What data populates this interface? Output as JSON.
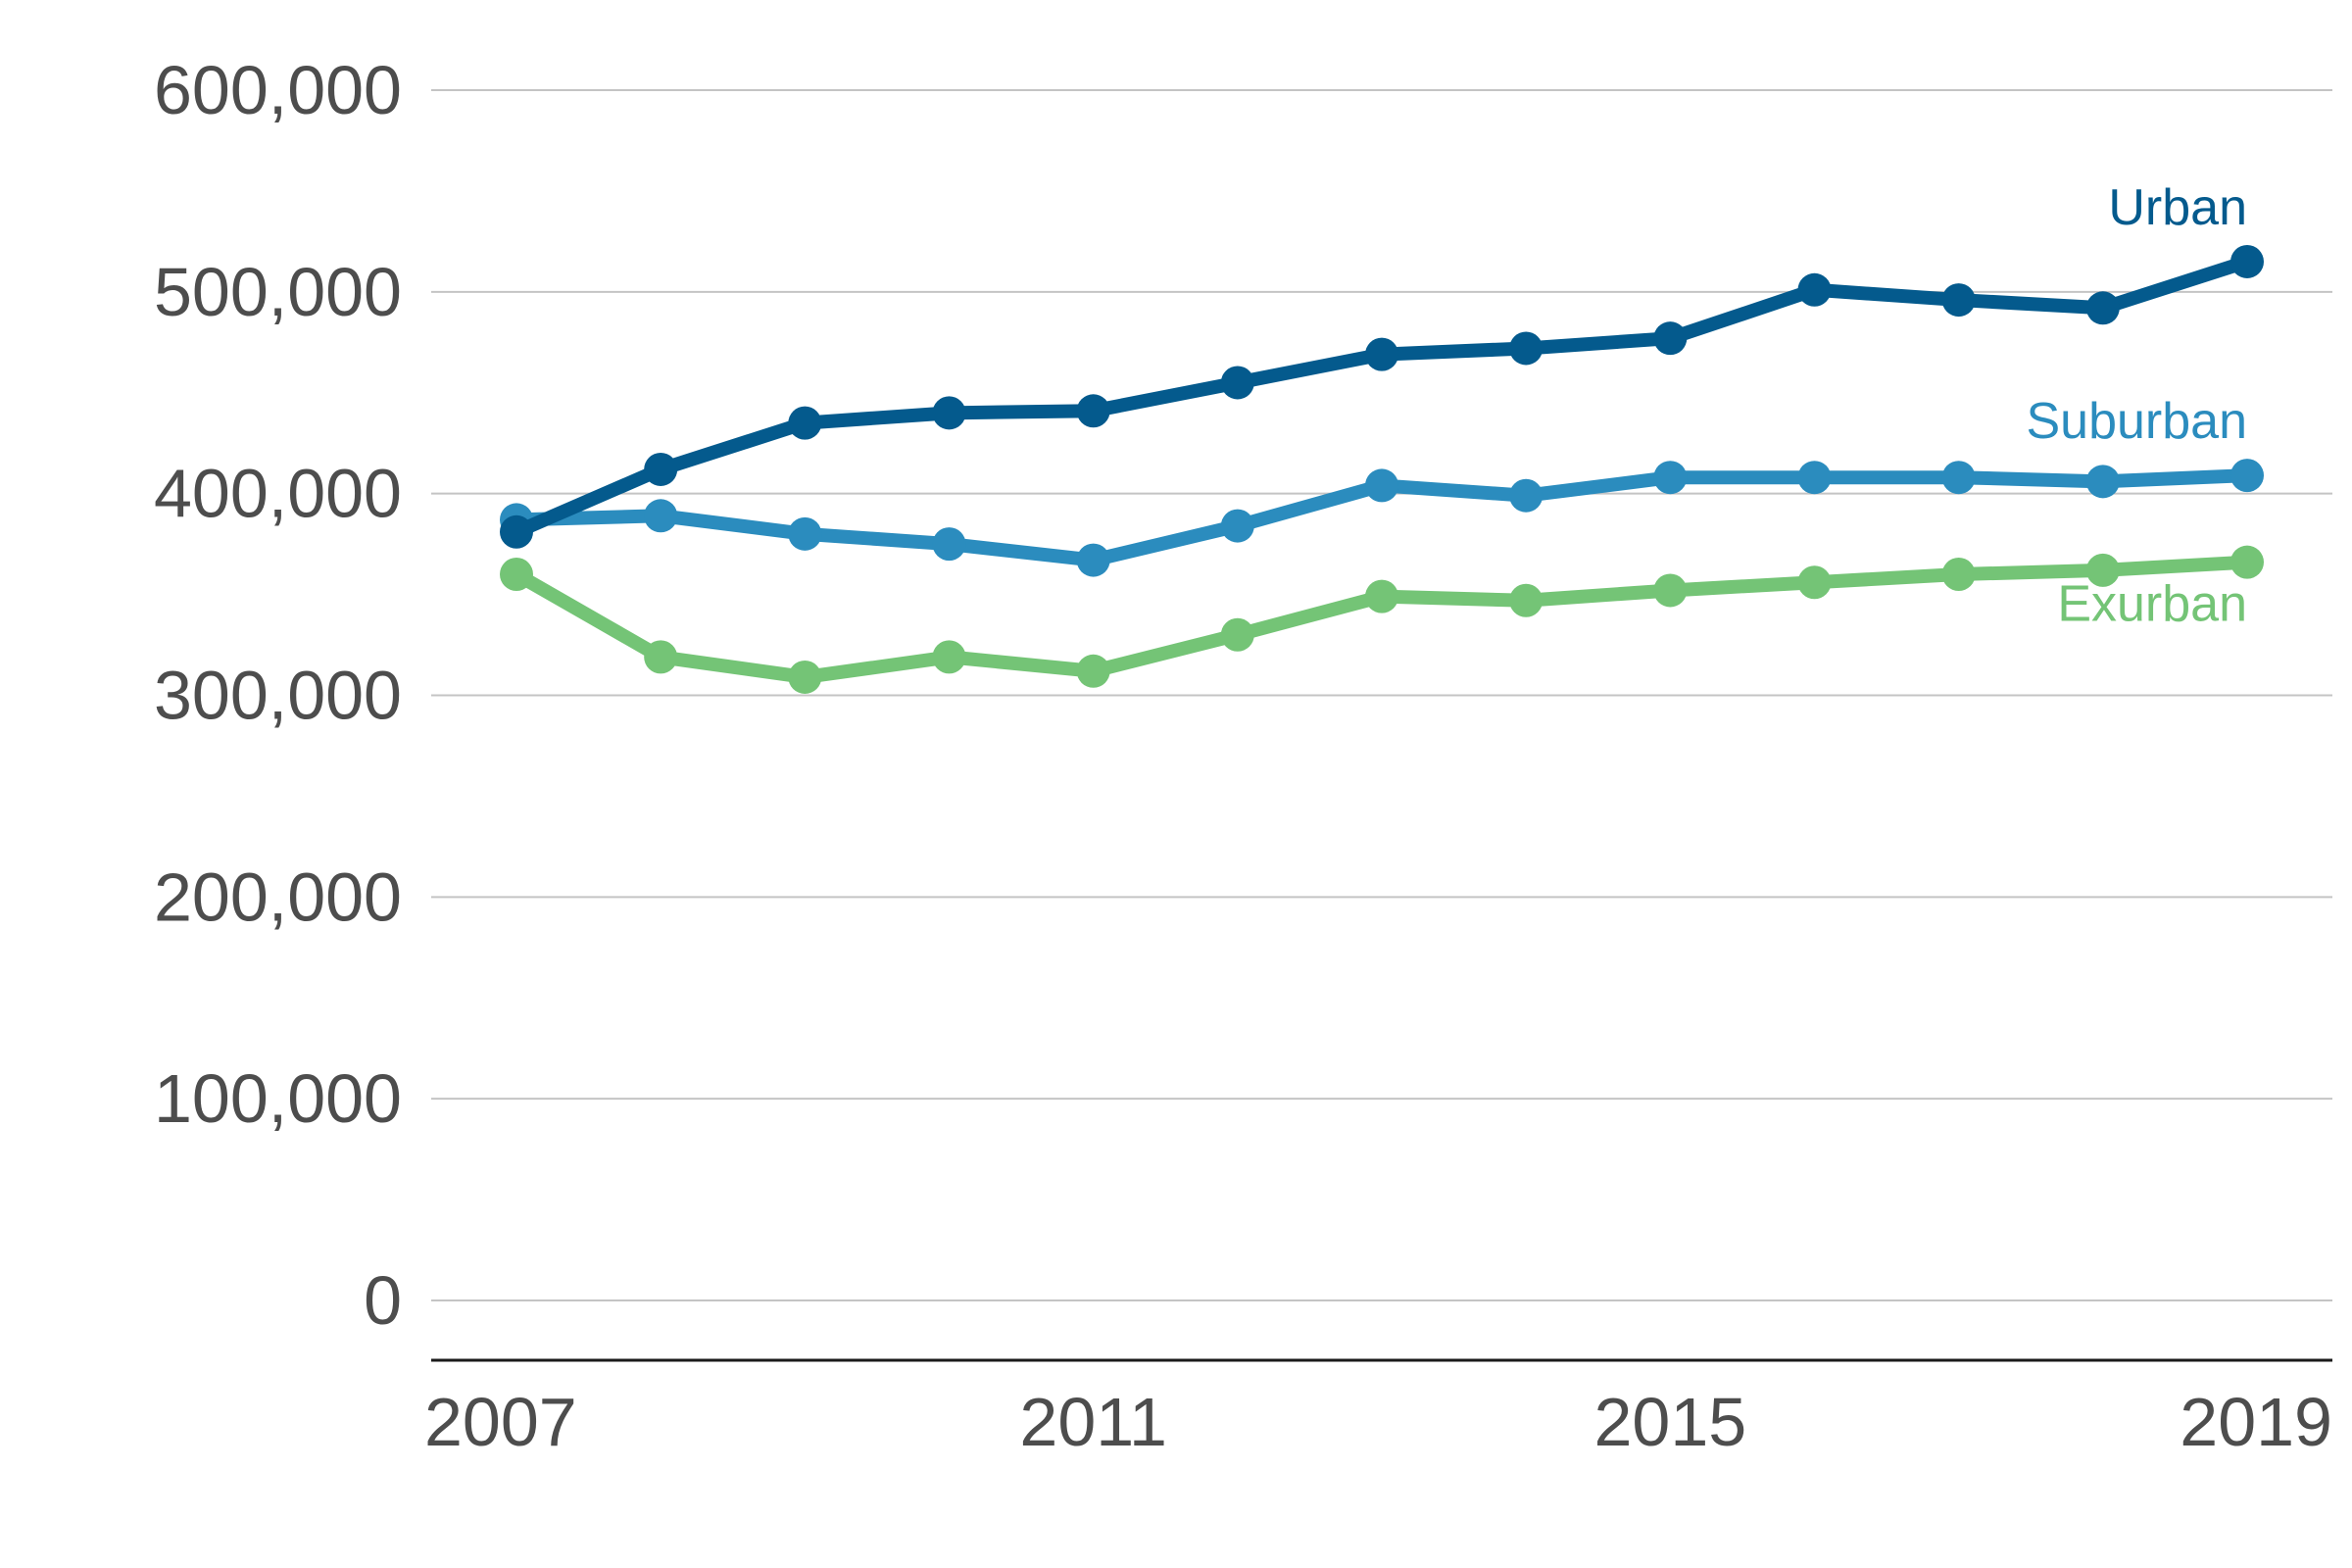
{
  "chart_data": {
    "type": "line",
    "title": "",
    "xlabel": "",
    "ylabel": "",
    "x": [
      2007,
      2008,
      2009,
      2010,
      2011,
      2012,
      2013,
      2014,
      2015,
      2016,
      2017,
      2018,
      2019
    ],
    "x_tick_labels": [
      "2007",
      "2011",
      "2015",
      "2019"
    ],
    "x_ticks": [
      2007,
      2011,
      2015,
      2019
    ],
    "y_ticks": [
      0,
      100000,
      200000,
      300000,
      400000,
      500000,
      600000
    ],
    "y_tick_labels": [
      "0",
      "100,000",
      "200,000",
      "300,000",
      "400,000",
      "500,000",
      "600,000"
    ],
    "ylim": [
      0,
      600000
    ],
    "grid": true,
    "legend": "direct labels at line ends",
    "series": [
      {
        "name": "Urban",
        "color": "#045a8d",
        "values": [
          381000,
          412000,
          435000,
          440000,
          441000,
          455000,
          469000,
          472000,
          477000,
          501000,
          496000,
          492000,
          515000
        ]
      },
      {
        "name": "Suburban",
        "color": "#2b8cbe",
        "values": [
          387000,
          389000,
          380000,
          375000,
          367000,
          384000,
          404000,
          399000,
          408000,
          408000,
          408000,
          406000,
          409000
        ]
      },
      {
        "name": "Exurban",
        "color": "#74c476",
        "values": [
          360000,
          319000,
          309000,
          319000,
          312000,
          330000,
          349000,
          347000,
          352000,
          356000,
          360000,
          362000,
          366000
        ]
      }
    ]
  }
}
